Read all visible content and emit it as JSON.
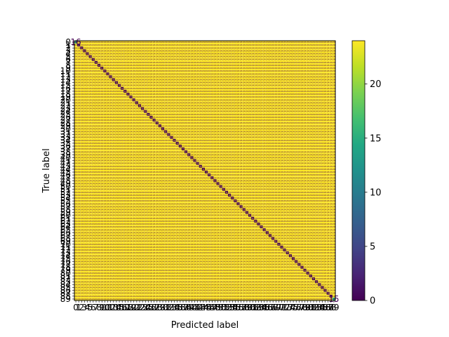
{
  "chart_data": {
    "type": "heatmap",
    "subtype": "confusion_matrix",
    "xlabel": "Predicted label",
    "ylabel": "True label",
    "n_classes": 90,
    "classes": [
      0,
      1,
      2,
      3,
      4,
      5,
      6,
      7,
      8,
      9,
      10,
      11,
      12,
      13,
      14,
      15,
      16,
      17,
      18,
      19,
      20,
      21,
      22,
      23,
      24,
      25,
      26,
      27,
      28,
      29,
      30,
      31,
      32,
      33,
      34,
      35,
      36,
      37,
      38,
      39,
      40,
      41,
      42,
      43,
      44,
      45,
      46,
      47,
      48,
      49,
      50,
      51,
      52,
      53,
      54,
      55,
      56,
      57,
      58,
      59,
      60,
      61,
      62,
      63,
      64,
      65,
      66,
      67,
      68,
      69,
      70,
      71,
      72,
      73,
      74,
      75,
      76,
      77,
      78,
      79,
      80,
      81,
      82,
      83,
      84,
      85,
      86,
      87,
      88,
      89
    ],
    "off_diagonal_value": 24,
    "diagonal_value": 0,
    "corner_values": [
      {
        "row": 0,
        "col": 0,
        "value": 16
      },
      {
        "row": 89,
        "col": 89,
        "value": 15
      }
    ],
    "colorbar": {
      "vmin": 0,
      "vmax": 24,
      "ticks": [
        0,
        5,
        10,
        15,
        20
      ],
      "colormap": "viridis"
    },
    "colors": {
      "viridis_low": "#440154",
      "viridis_high": "#fde725",
      "bright_text": "#fde725",
      "dark_text": "#440154"
    }
  }
}
